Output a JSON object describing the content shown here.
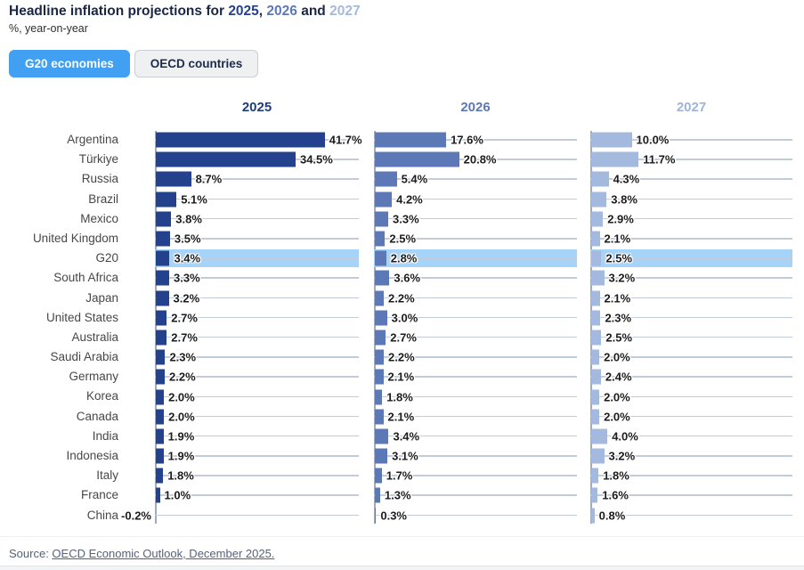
{
  "title": {
    "prefix": "Headline inflation projections for ",
    "year1": "2025",
    "sep1": ", ",
    "year2": "2026",
    "sep2": " and ",
    "year3": "2027"
  },
  "subtitle": "%, year-on-year",
  "tabs": [
    {
      "label": "G20 economies",
      "active": true
    },
    {
      "label": "OECD countries",
      "active": false
    }
  ],
  "source": {
    "prefix": "Source: ",
    "link_text": "OECD Economic Outlook, December 2025."
  },
  "colors": {
    "year_2025": "#24418e",
    "year_2026": "#5d78b6",
    "year_2027": "#a3b9de",
    "header_2025": "#1e3d80",
    "header_2026": "#5d78b6",
    "header_2027": "#9db4dc",
    "highlight_row": "#a6d4f9",
    "active_tab": "#41a0f1",
    "gridline": "#c2cbda",
    "title_dark": "#1a2744"
  },
  "chart_data": {
    "type": "bar",
    "orientation": "horizontal",
    "value_suffix": "%",
    "xlim": [
      0,
      50
    ],
    "grid": true,
    "legend_position": "column-headers",
    "highlight_category": "G20",
    "categories": [
      "Argentina",
      "Türkiye",
      "Russia",
      "Brazil",
      "Mexico",
      "United Kingdom",
      "G20",
      "South Africa",
      "Japan",
      "United States",
      "Australia",
      "Saudi Arabia",
      "Germany",
      "Korea",
      "Canada",
      "India",
      "Indonesia",
      "Italy",
      "France",
      "China"
    ],
    "series": [
      {
        "name": "2025",
        "color": "#24418e",
        "values": [
          41.7,
          34.5,
          8.7,
          5.1,
          3.8,
          3.5,
          3.4,
          3.3,
          3.2,
          2.7,
          2.7,
          2.3,
          2.2,
          2.0,
          2.0,
          1.9,
          1.9,
          1.8,
          1.0,
          -0.2
        ]
      },
      {
        "name": "2026",
        "color": "#5d78b6",
        "values": [
          17.6,
          20.8,
          5.4,
          4.2,
          3.3,
          2.5,
          2.8,
          3.6,
          2.2,
          3.0,
          2.7,
          2.2,
          2.1,
          1.8,
          2.1,
          3.4,
          3.1,
          1.7,
          1.3,
          0.3
        ]
      },
      {
        "name": "2027",
        "color": "#a3b9de",
        "values": [
          10.0,
          11.7,
          4.3,
          3.8,
          2.9,
          2.1,
          2.5,
          3.2,
          2.1,
          2.3,
          2.5,
          2.0,
          2.4,
          2.0,
          2.0,
          4.0,
          3.2,
          1.8,
          1.6,
          0.8
        ]
      }
    ]
  }
}
